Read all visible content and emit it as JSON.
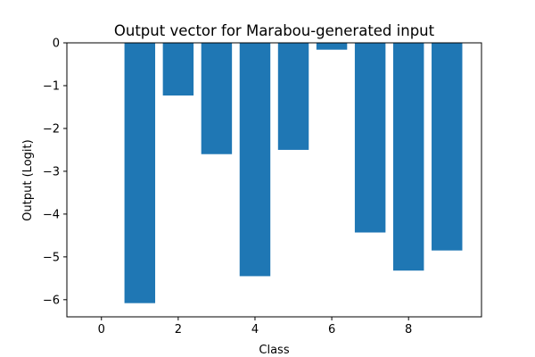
{
  "chart_data": {
    "type": "bar",
    "title": "Output vector for Marabou-generated input",
    "xlabel": "Class",
    "ylabel": "Output (Logit)",
    "x": [
      0,
      1,
      2,
      3,
      4,
      5,
      6,
      7,
      8,
      9
    ],
    "values": [
      0.0,
      -6.08,
      -1.23,
      -2.6,
      -5.45,
      -2.5,
      -0.16,
      -4.43,
      -5.32,
      -4.85
    ],
    "xlim": [
      -0.9,
      9.9
    ],
    "ylim": [
      -6.4,
      0.0
    ],
    "xticks": [
      0,
      2,
      4,
      6,
      8
    ],
    "yticks": [
      0,
      -1,
      -2,
      -3,
      -4,
      -5,
      -6
    ],
    "xtick_labels": [
      "0",
      "2",
      "4",
      "6",
      "8"
    ],
    "ytick_labels": [
      "0",
      "−1",
      "−2",
      "−3",
      "−4",
      "−5",
      "−6"
    ],
    "bar_color": "#1f77b4",
    "grid": false,
    "legend": "none"
  }
}
